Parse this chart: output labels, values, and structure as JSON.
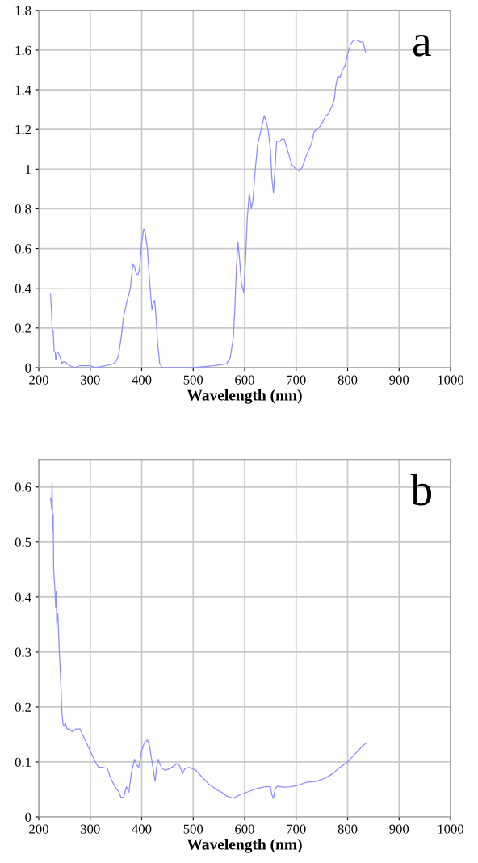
{
  "chart_data": [
    {
      "type": "line",
      "xlabel": "Wavelength (nm)",
      "annotations": [
        "a"
      ],
      "xlim": [
        200,
        1000
      ],
      "xticks": [
        200,
        300,
        400,
        500,
        600,
        700,
        800,
        900,
        1000
      ],
      "ylim": [
        0,
        1.8
      ],
      "yticks": [
        0,
        0.2,
        0.4,
        0.6,
        0.8,
        1,
        1.2,
        1.4,
        1.6,
        1.8
      ],
      "grid": true,
      "legend": false,
      "marker": "none",
      "line_style": "solid",
      "series": [
        {
          "color": "#8c8cff",
          "x": [
            223,
            225,
            226,
            228,
            230,
            232,
            233,
            235,
            237,
            242,
            245,
            248,
            250,
            260,
            270,
            280,
            300,
            310,
            330,
            345,
            350,
            355,
            360,
            365,
            372,
            378,
            381,
            383,
            386,
            390,
            393,
            396,
            400,
            404,
            407,
            411,
            415,
            418,
            420,
            423,
            425,
            428,
            431,
            435,
            440,
            460,
            500,
            540,
            565,
            572,
            578,
            581,
            584,
            587,
            590,
            594,
            598,
            601,
            605,
            609,
            613,
            616,
            620,
            625,
            632,
            638,
            642,
            646,
            650,
            653,
            656,
            659,
            662,
            668,
            672,
            677,
            685,
            692,
            700,
            706,
            712,
            720,
            730,
            735,
            740,
            745,
            752,
            758,
            763,
            770,
            774,
            777,
            781,
            785,
            790,
            795,
            800,
            806,
            812,
            818,
            826,
            830,
            835
          ],
          "values": [
            0.37,
            0.27,
            0.2,
            0.18,
            0.08,
            0.08,
            0.04,
            0.07,
            0.08,
            0.05,
            0.02,
            0.03,
            0.03,
            0.01,
            0.0,
            0.01,
            0.01,
            0.0,
            0.01,
            0.02,
            0.03,
            0.06,
            0.15,
            0.26,
            0.34,
            0.4,
            0.48,
            0.52,
            0.51,
            0.47,
            0.47,
            0.5,
            0.63,
            0.7,
            0.68,
            0.6,
            0.45,
            0.35,
            0.29,
            0.33,
            0.34,
            0.25,
            0.12,
            0.02,
            0.0,
            0.0,
            0.0,
            0.01,
            0.02,
            0.05,
            0.15,
            0.3,
            0.5,
            0.63,
            0.55,
            0.42,
            0.38,
            0.5,
            0.75,
            0.88,
            0.8,
            0.84,
            0.98,
            1.12,
            1.2,
            1.27,
            1.24,
            1.19,
            1.1,
            0.95,
            0.88,
            1.0,
            1.14,
            1.14,
            1.15,
            1.15,
            1.08,
            1.02,
            1.0,
            0.99,
            1.01,
            1.07,
            1.13,
            1.19,
            1.2,
            1.21,
            1.24,
            1.27,
            1.28,
            1.32,
            1.35,
            1.42,
            1.47,
            1.46,
            1.5,
            1.52,
            1.58,
            1.63,
            1.65,
            1.65,
            1.64,
            1.64,
            1.59
          ]
        }
      ]
    },
    {
      "type": "line",
      "xlabel": "Wavelength (nm)",
      "annotations": [
        "b"
      ],
      "xlim": [
        200,
        1000
      ],
      "xticks": [
        200,
        300,
        400,
        500,
        600,
        700,
        800,
        900,
        1000
      ],
      "ylim": [
        0,
        0.65
      ],
      "yticks": [
        0,
        0.1,
        0.2,
        0.3,
        0.4,
        0.5,
        0.6
      ],
      "grid": true,
      "legend": false,
      "marker": "none",
      "line_style": "solid",
      "series": [
        {
          "color": "#8c8cff",
          "x": [
            223,
            225,
            226,
            227,
            228,
            229,
            231,
            233,
            234,
            235,
            237,
            238,
            240,
            243,
            245,
            247,
            249,
            252,
            255,
            260,
            265,
            272,
            280,
            290,
            300,
            310,
            316,
            325,
            333,
            340,
            348,
            352,
            356,
            360,
            365,
            370,
            375,
            380,
            386,
            390,
            394,
            400,
            405,
            411,
            415,
            420,
            426,
            429,
            432,
            438,
            445,
            455,
            462,
            468,
            472,
            475,
            479,
            484,
            492,
            505,
            515,
            530,
            545,
            555,
            565,
            578,
            590,
            610,
            625,
            640,
            650,
            653,
            656,
            659,
            663,
            675,
            690,
            705,
            720,
            740,
            755,
            770,
            785,
            800,
            810,
            820,
            830,
            836
          ],
          "values": [
            0.58,
            0.56,
            0.61,
            0.52,
            0.55,
            0.45,
            0.42,
            0.38,
            0.41,
            0.35,
            0.37,
            0.35,
            0.3,
            0.24,
            0.19,
            0.17,
            0.165,
            0.17,
            0.16,
            0.16,
            0.155,
            0.16,
            0.16,
            0.14,
            0.12,
            0.1,
            0.09,
            0.09,
            0.088,
            0.07,
            0.055,
            0.05,
            0.045,
            0.035,
            0.036,
            0.055,
            0.045,
            0.08,
            0.105,
            0.095,
            0.09,
            0.12,
            0.135,
            0.14,
            0.13,
            0.1,
            0.065,
            0.09,
            0.105,
            0.09,
            0.085,
            0.088,
            0.092,
            0.097,
            0.095,
            0.09,
            0.078,
            0.088,
            0.09,
            0.085,
            0.075,
            0.06,
            0.05,
            0.045,
            0.038,
            0.034,
            0.04,
            0.047,
            0.052,
            0.055,
            0.055,
            0.04,
            0.034,
            0.05,
            0.056,
            0.054,
            0.055,
            0.058,
            0.063,
            0.065,
            0.07,
            0.078,
            0.09,
            0.1,
            0.11,
            0.12,
            0.13,
            0.134
          ]
        }
      ]
    }
  ]
}
